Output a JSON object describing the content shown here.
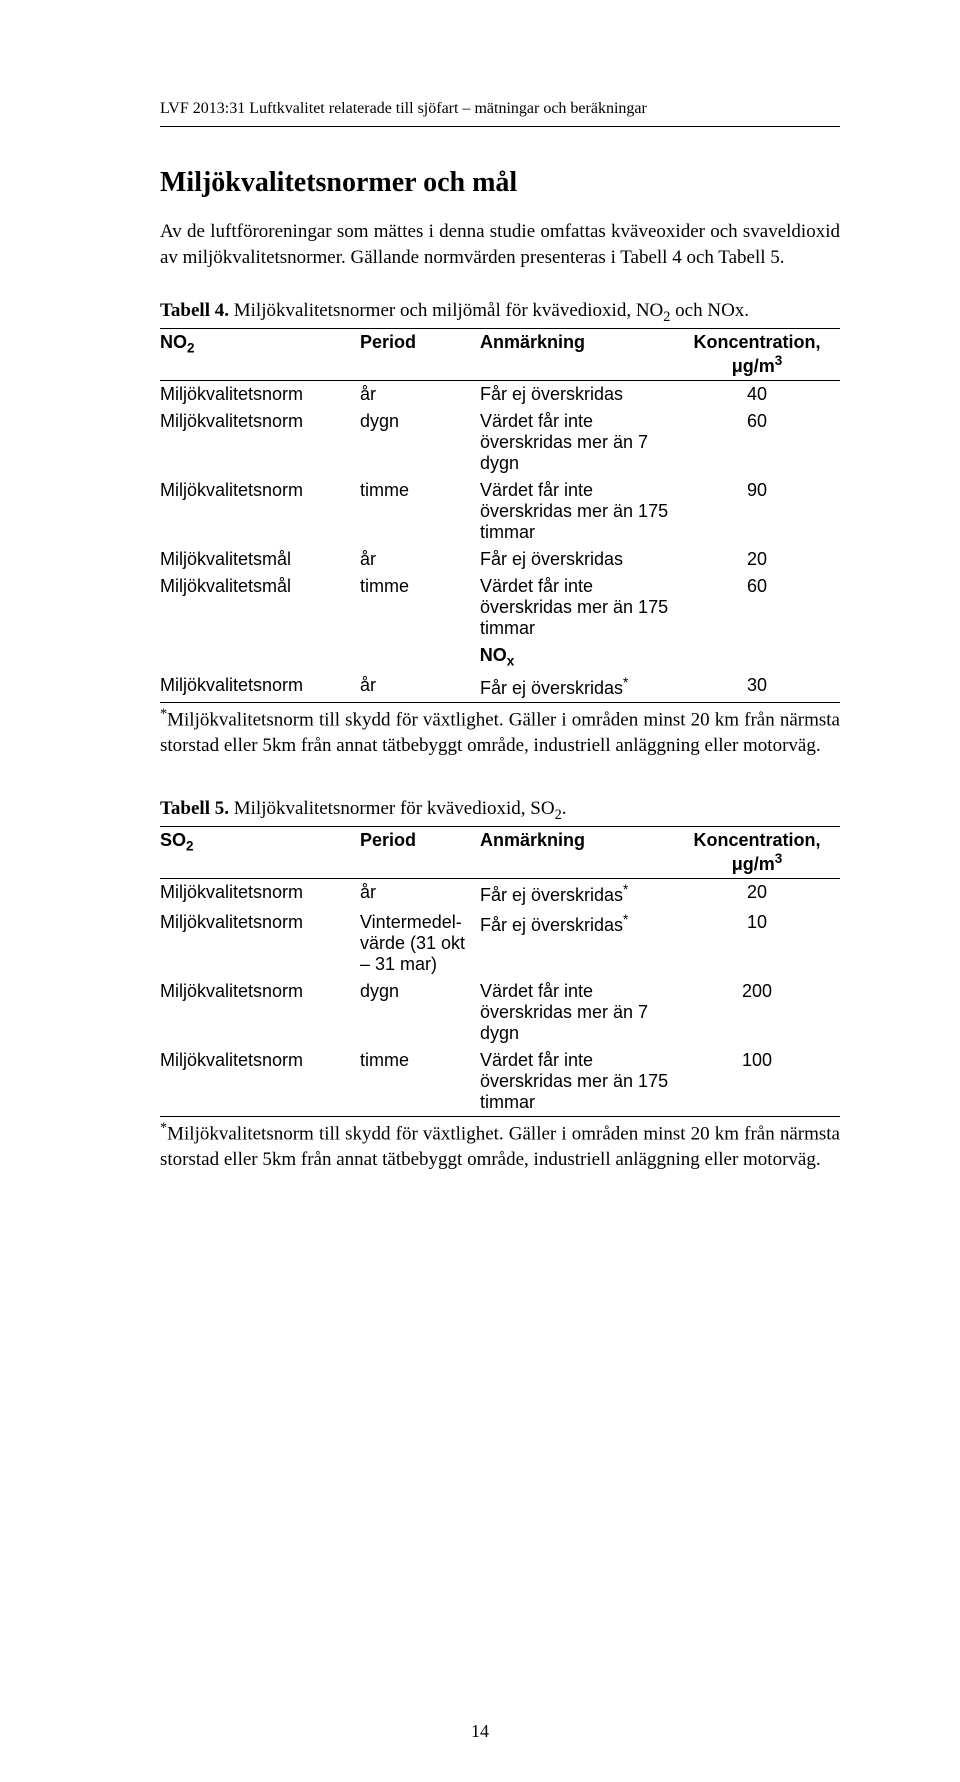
{
  "header": "LVF 2013:31 Luftkvalitet relaterade till sjöfart – mätningar och beräkningar",
  "title": "Miljökvalitetsnormer och mål",
  "intro": "Av de luftföroreningar som mättes i denna studie omfattas kväveoxider och svaveldioxid av miljökvalitetsnormer. Gällande normvärden presenteras i Tabell 4 och Tabell 5.",
  "table4": {
    "captionBold": "Tabell 4.",
    "captionRest": " Miljökvalitetsnormer och miljömål för kvävedioxid, NO",
    "captionSub": "2",
    "captionAfter": " och NOx.",
    "headers": [
      "NO",
      "Period",
      "Anmärkning",
      "Koncentration, μg/m"
    ],
    "headerSub": "2",
    "headerSup": "3",
    "rows": [
      {
        "c0": "Miljökvalitetsnorm",
        "c1": "år",
        "c2": "Får ej överskridas",
        "c3": "40"
      },
      {
        "c0": "Miljökvalitetsnorm",
        "c1": "dygn",
        "c2": "Värdet får inte överskridas mer än 7 dygn",
        "c3": "60"
      },
      {
        "c0": "Miljökvalitetsnorm",
        "c1": "timme",
        "c2": "Värdet får inte överskridas mer än 175 timmar",
        "c3": "90"
      },
      {
        "c0": "Miljökvalitetsmål",
        "c1": "år",
        "c2": "Får ej överskridas",
        "c3": "20"
      },
      {
        "c0": "Miljökvalitetsmål",
        "c1": "timme",
        "c2": "Värdet får inte överskridas mer än 175 timmar",
        "c3": "60"
      }
    ],
    "noxLabel": "NO",
    "noxSub": "x",
    "noxRow": {
      "c0": "Miljökvalitetsnorm",
      "c1": "år",
      "c2": "Får ej överskridas",
      "c2sup": "*",
      "c3": "30"
    },
    "footnoteSup": "*",
    "footnote": "Miljökvalitetsnorm till skydd för växtlighet. Gäller i områden minst 20 km från närmsta storstad eller 5km från annat tätbebyggt område, industriell anläggning eller motorväg."
  },
  "table5": {
    "captionBold": "Tabell 5.",
    "captionRest": " Miljökvalitetsnormer för kvävedioxid, SO",
    "captionSub": "2",
    "captionAfter": ".",
    "headers": [
      "SO",
      "Period",
      "Anmärkning",
      "Koncentration, μg/m"
    ],
    "headerSub": "2",
    "headerSup": "3",
    "rows": [
      {
        "c0": "Miljökvalitetsnorm",
        "c1": "år",
        "c2": "Får ej överskridas",
        "c2sup": "*",
        "c3": "20"
      },
      {
        "c0": "Miljökvalitetsnorm",
        "c1": "Vintermedel-värde (31 okt – 31 mar)",
        "c2": "Får ej överskridas",
        "c2sup": "*",
        "c3": "10"
      },
      {
        "c0": "Miljökvalitetsnorm",
        "c1": "dygn",
        "c2": "Värdet får inte överskridas mer än 7 dygn",
        "c3": "200"
      },
      {
        "c0": "Miljökvalitetsnorm",
        "c1": "timme",
        "c2": "Värdet får inte överskridas mer än 175 timmar",
        "c3": "100"
      }
    ],
    "footnoteSup": "*",
    "footnote": "Miljökvalitetsnorm till skydd för växtlighet. Gäller i områden minst 20 km från närmsta storstad eller 5km från annat tätbebyggt område, industriell anläggning eller motorväg."
  },
  "pageNumber": "14"
}
